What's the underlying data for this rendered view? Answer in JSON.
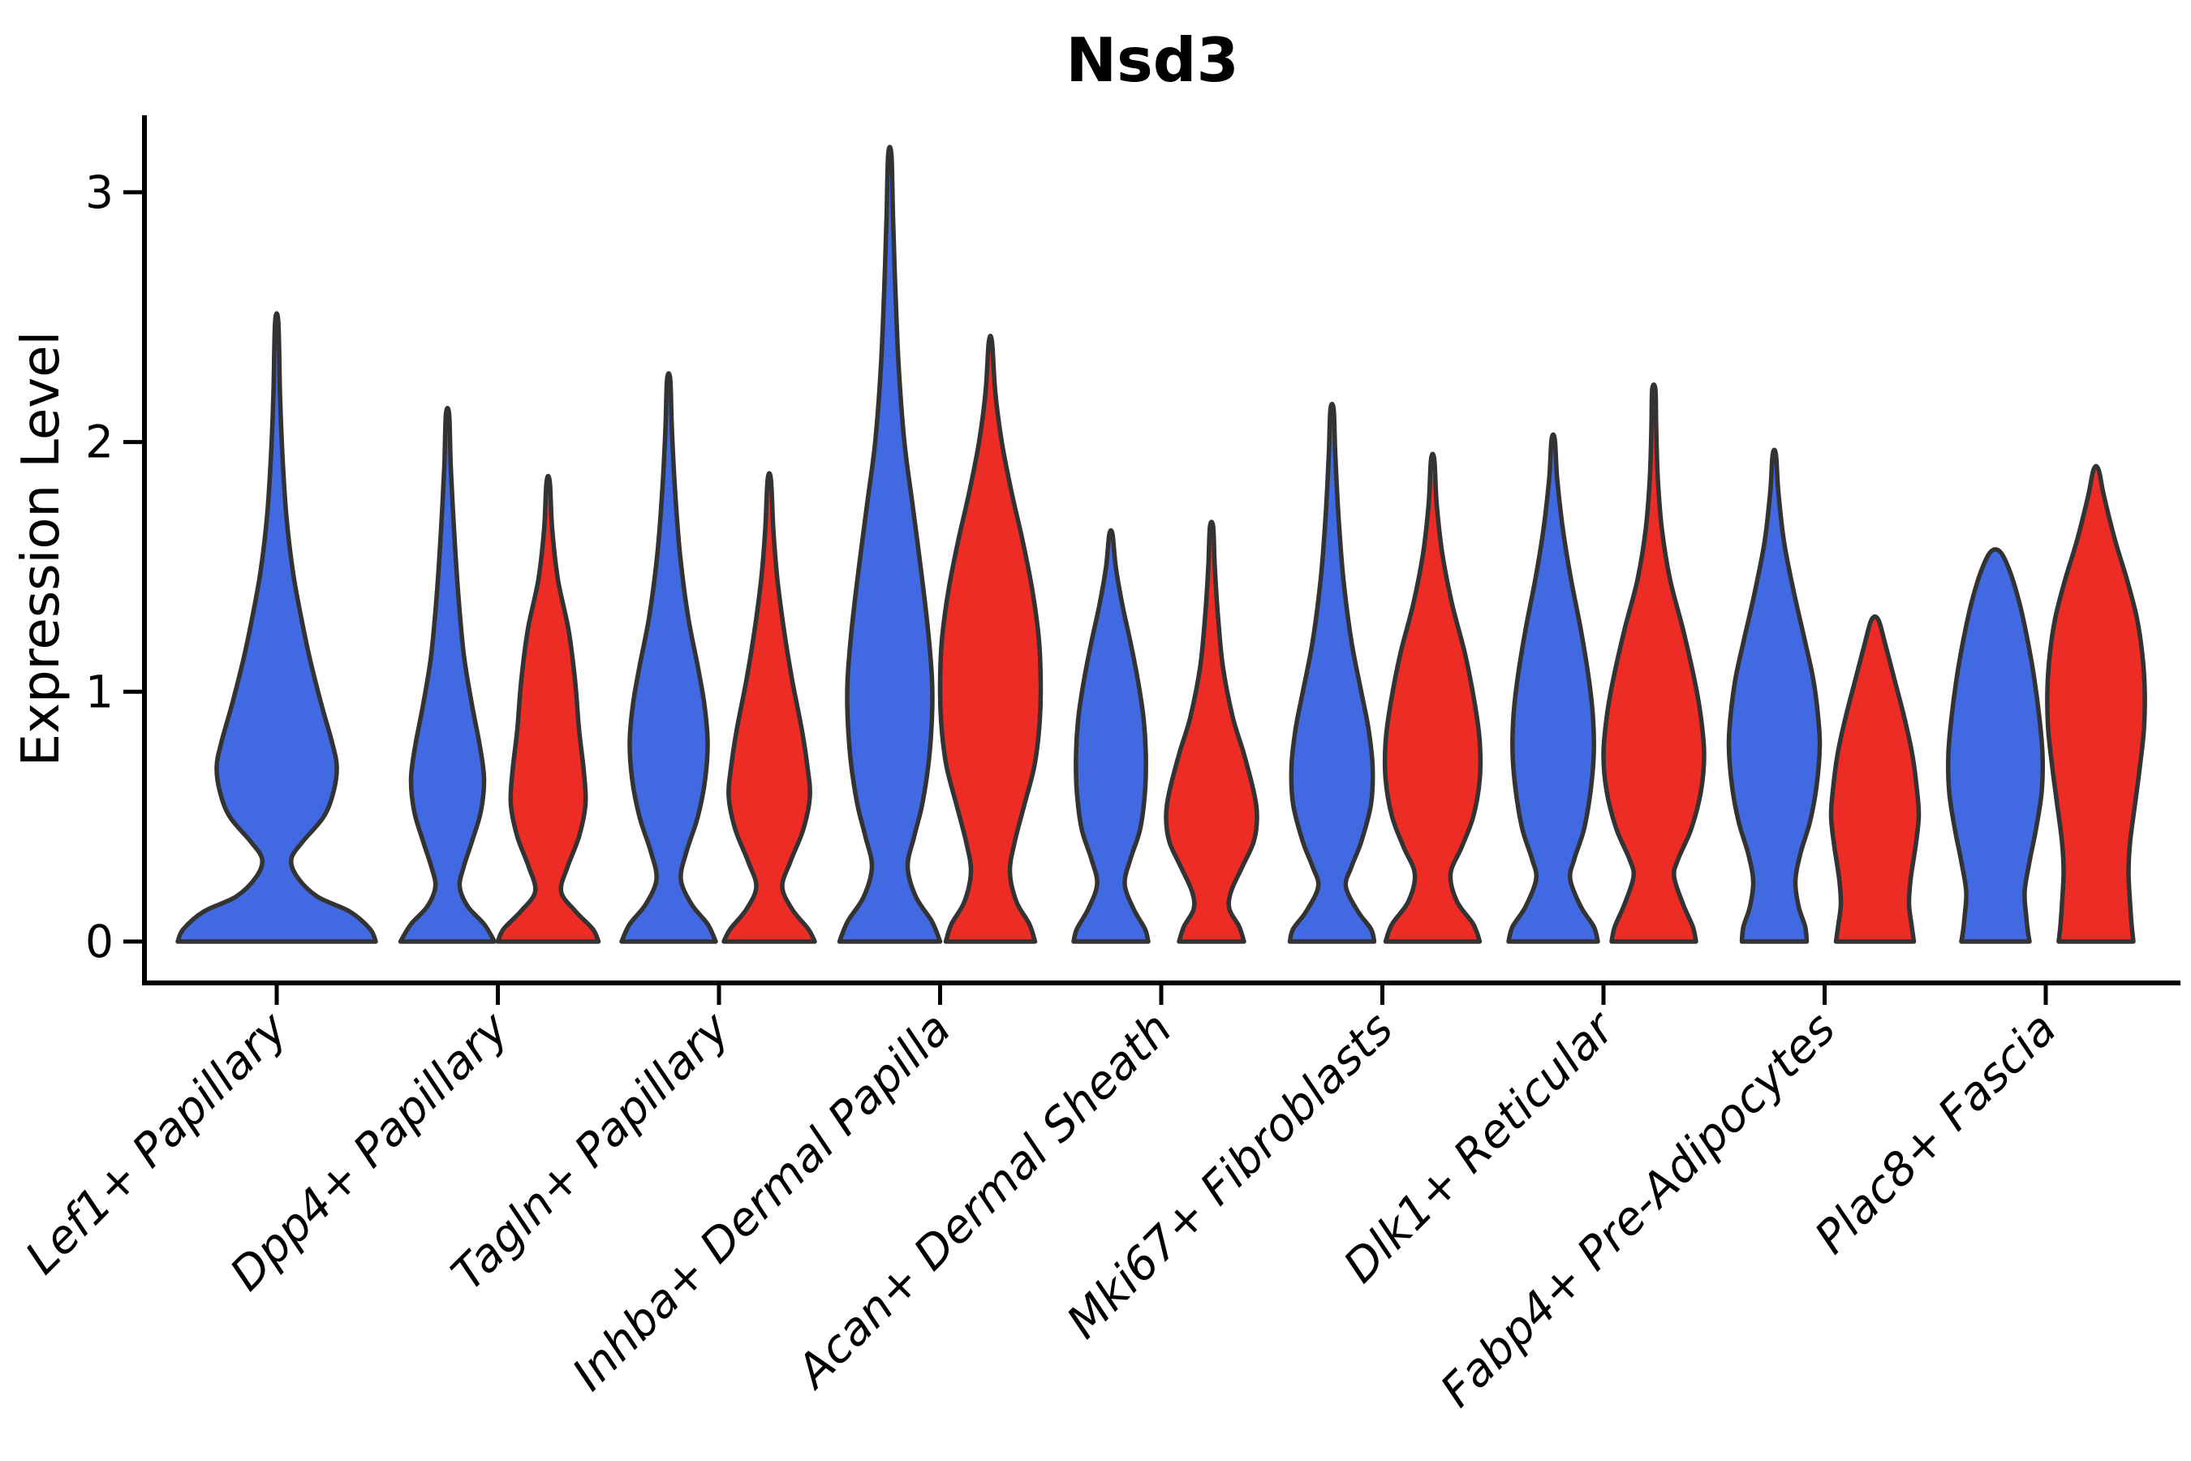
{
  "title": "Nsd3",
  "ylabel": "Expression Level",
  "colors": {
    "split_blue": "#4169E1",
    "split_red": "#EE2C26",
    "violin_outline": "#333333",
    "axis": "#000000",
    "background": "#ffffff"
  },
  "chart_data": {
    "type": "violin",
    "title": "Nsd3",
    "xlabel": "",
    "ylabel": "Expression Level",
    "ylim": [
      0,
      3.3
    ],
    "yticks": [
      0,
      1,
      2,
      3
    ],
    "grid": false,
    "legend": "none",
    "categories": [
      "Lef1+ Papillary",
      "Dpp4+ Papillary",
      "Tagln+ Papillary",
      "Inhba+ Dermal Papilla",
      "Acan+ Dermal Sheath",
      "Mki67+ Fibroblasts",
      "Dlk1+ Reticular",
      "Fabp4+ Pre-Adipocytes",
      "Plac8+ Fascia"
    ],
    "splits": [
      {
        "key": "blue",
        "color": "#4169E1"
      },
      {
        "key": "red",
        "color": "#EE2C26"
      }
    ],
    "violins": [
      {
        "category_index": 0,
        "category": "Lef1+ Papillary",
        "split": "blue",
        "side": "center",
        "max_expression": 2.48,
        "profile": [
          [
            2.48,
            2
          ],
          [
            2.2,
            4
          ],
          [
            1.95,
            7
          ],
          [
            1.7,
            12
          ],
          [
            1.48,
            20
          ],
          [
            1.3,
            30
          ],
          [
            1.13,
            41
          ],
          [
            0.95,
            55
          ],
          [
            0.8,
            68
          ],
          [
            0.7,
            74
          ],
          [
            0.6,
            70
          ],
          [
            0.5,
            58
          ],
          [
            0.4,
            32
          ],
          [
            0.33,
            18
          ],
          [
            0.26,
            25
          ],
          [
            0.18,
            50
          ],
          [
            0.12,
            90
          ],
          [
            0.05,
            115
          ],
          [
            0,
            122
          ]
        ]
      },
      {
        "category_index": 1,
        "category": "Dpp4+ Papillary",
        "split": "blue",
        "side": "left",
        "max_expression": 2.11,
        "profile": [
          [
            2.11,
            2
          ],
          [
            1.9,
            4
          ],
          [
            1.65,
            8
          ],
          [
            1.4,
            13
          ],
          [
            1.15,
            20
          ],
          [
            0.95,
            30
          ],
          [
            0.78,
            40
          ],
          [
            0.65,
            45
          ],
          [
            0.52,
            41
          ],
          [
            0.4,
            30
          ],
          [
            0.3,
            20
          ],
          [
            0.22,
            15
          ],
          [
            0.14,
            25
          ],
          [
            0.07,
            45
          ],
          [
            0,
            58
          ]
        ]
      },
      {
        "category_index": 1,
        "category": "Dpp4+ Papillary",
        "split": "red",
        "side": "right",
        "max_expression": 1.84,
        "profile": [
          [
            1.84,
            2
          ],
          [
            1.65,
            5
          ],
          [
            1.45,
            12
          ],
          [
            1.25,
            25
          ],
          [
            1.05,
            33
          ],
          [
            0.85,
            38
          ],
          [
            0.68,
            44
          ],
          [
            0.55,
            46
          ],
          [
            0.42,
            38
          ],
          [
            0.3,
            24
          ],
          [
            0.2,
            16
          ],
          [
            0.12,
            34
          ],
          [
            0.05,
            55
          ],
          [
            0,
            62
          ]
        ]
      },
      {
        "category_index": 2,
        "category": "Tagln+ Papillary",
        "split": "blue",
        "side": "left",
        "max_expression": 2.25,
        "profile": [
          [
            2.25,
            2
          ],
          [
            2.05,
            4
          ],
          [
            1.8,
            8
          ],
          [
            1.55,
            14
          ],
          [
            1.3,
            24
          ],
          [
            1.1,
            36
          ],
          [
            0.95,
            44
          ],
          [
            0.8,
            48
          ],
          [
            0.65,
            45
          ],
          [
            0.5,
            36
          ],
          [
            0.36,
            22
          ],
          [
            0.25,
            15
          ],
          [
            0.15,
            28
          ],
          [
            0.07,
            48
          ],
          [
            0,
            58
          ]
        ]
      },
      {
        "category_index": 2,
        "category": "Tagln+ Papillary",
        "split": "red",
        "side": "right",
        "max_expression": 1.85,
        "profile": [
          [
            1.85,
            2
          ],
          [
            1.65,
            5
          ],
          [
            1.45,
            10
          ],
          [
            1.25,
            18
          ],
          [
            1.05,
            28
          ],
          [
            0.85,
            40
          ],
          [
            0.7,
            47
          ],
          [
            0.58,
            50
          ],
          [
            0.45,
            42
          ],
          [
            0.32,
            26
          ],
          [
            0.22,
            16
          ],
          [
            0.13,
            28
          ],
          [
            0.05,
            48
          ],
          [
            0,
            56
          ]
        ]
      },
      {
        "category_index": 3,
        "category": "Inhba+ Dermal Papilla",
        "split": "blue",
        "side": "left",
        "max_expression": 3.15,
        "profile": [
          [
            3.15,
            2
          ],
          [
            2.9,
            4
          ],
          [
            2.6,
            7
          ],
          [
            2.3,
            11
          ],
          [
            2.0,
            18
          ],
          [
            1.75,
            28
          ],
          [
            1.5,
            38
          ],
          [
            1.25,
            47
          ],
          [
            1.05,
            52
          ],
          [
            0.9,
            52
          ],
          [
            0.72,
            48
          ],
          [
            0.55,
            40
          ],
          [
            0.42,
            30
          ],
          [
            0.3,
            22
          ],
          [
            0.18,
            32
          ],
          [
            0.08,
            52
          ],
          [
            0,
            62
          ]
        ]
      },
      {
        "category_index": 3,
        "category": "Inhba+ Dermal Papilla",
        "split": "red",
        "side": "right",
        "max_expression": 2.4,
        "profile": [
          [
            2.4,
            2
          ],
          [
            2.2,
            6
          ],
          [
            2.0,
            14
          ],
          [
            1.8,
            26
          ],
          [
            1.6,
            40
          ],
          [
            1.4,
            52
          ],
          [
            1.2,
            60
          ],
          [
            1.0,
            62
          ],
          [
            0.85,
            60
          ],
          [
            0.7,
            54
          ],
          [
            0.55,
            42
          ],
          [
            0.4,
            30
          ],
          [
            0.28,
            24
          ],
          [
            0.16,
            32
          ],
          [
            0.07,
            48
          ],
          [
            0,
            55
          ]
        ]
      },
      {
        "category_index": 4,
        "category": "Acan+ Dermal Sheath",
        "split": "blue",
        "side": "left",
        "max_expression": 1.63,
        "profile": [
          [
            1.63,
            2
          ],
          [
            1.5,
            6
          ],
          [
            1.35,
            14
          ],
          [
            1.2,
            24
          ],
          [
            1.05,
            33
          ],
          [
            0.9,
            40
          ],
          [
            0.75,
            43
          ],
          [
            0.6,
            42
          ],
          [
            0.45,
            36
          ],
          [
            0.33,
            24
          ],
          [
            0.23,
            17
          ],
          [
            0.13,
            28
          ],
          [
            0.05,
            42
          ],
          [
            0,
            46
          ]
        ]
      },
      {
        "category_index": 4,
        "category": "Acan+ Dermal Sheath",
        "split": "red",
        "side": "right",
        "max_expression": 1.66,
        "profile": [
          [
            1.66,
            2
          ],
          [
            1.5,
            4
          ],
          [
            1.3,
            8
          ],
          [
            1.1,
            14
          ],
          [
            0.9,
            26
          ],
          [
            0.75,
            40
          ],
          [
            0.6,
            52
          ],
          [
            0.5,
            56
          ],
          [
            0.4,
            52
          ],
          [
            0.3,
            38
          ],
          [
            0.2,
            24
          ],
          [
            0.13,
            22
          ],
          [
            0.06,
            34
          ],
          [
            0,
            40
          ]
        ]
      },
      {
        "category_index": 5,
        "category": "Mki67+ Fibroblasts",
        "split": "blue",
        "side": "left",
        "max_expression": 2.13,
        "profile": [
          [
            2.13,
            2
          ],
          [
            1.95,
            4
          ],
          [
            1.7,
            8
          ],
          [
            1.45,
            14
          ],
          [
            1.2,
            24
          ],
          [
            1.0,
            36
          ],
          [
            0.85,
            45
          ],
          [
            0.7,
            50
          ],
          [
            0.55,
            48
          ],
          [
            0.4,
            36
          ],
          [
            0.3,
            24
          ],
          [
            0.22,
            17
          ],
          [
            0.12,
            32
          ],
          [
            0.05,
            48
          ],
          [
            0,
            52
          ]
        ]
      },
      {
        "category_index": 5,
        "category": "Mki67+ Fibroblasts",
        "split": "red",
        "side": "right",
        "max_expression": 1.93,
        "profile": [
          [
            1.93,
            2
          ],
          [
            1.75,
            5
          ],
          [
            1.55,
            12
          ],
          [
            1.35,
            24
          ],
          [
            1.15,
            40
          ],
          [
            0.95,
            52
          ],
          [
            0.8,
            58
          ],
          [
            0.65,
            58
          ],
          [
            0.5,
            50
          ],
          [
            0.38,
            36
          ],
          [
            0.27,
            22
          ],
          [
            0.16,
            30
          ],
          [
            0.07,
            50
          ],
          [
            0,
            58
          ]
        ]
      },
      {
        "category_index": 6,
        "category": "Dlk1+ Reticular",
        "split": "blue",
        "side": "left",
        "max_expression": 2.01,
        "profile": [
          [
            2.01,
            2
          ],
          [
            1.85,
            5
          ],
          [
            1.65,
            12
          ],
          [
            1.45,
            22
          ],
          [
            1.25,
            34
          ],
          [
            1.05,
            44
          ],
          [
            0.9,
            49
          ],
          [
            0.75,
            50
          ],
          [
            0.6,
            46
          ],
          [
            0.45,
            38
          ],
          [
            0.33,
            26
          ],
          [
            0.25,
            21
          ],
          [
            0.14,
            34
          ],
          [
            0.06,
            50
          ],
          [
            0,
            55
          ]
        ]
      },
      {
        "category_index": 6,
        "category": "Dlk1+ Reticular",
        "split": "red",
        "side": "right",
        "max_expression": 2.21,
        "profile": [
          [
            2.21,
            2
          ],
          [
            2.05,
            3
          ],
          [
            1.85,
            5
          ],
          [
            1.65,
            10
          ],
          [
            1.45,
            20
          ],
          [
            1.25,
            36
          ],
          [
            1.05,
            50
          ],
          [
            0.9,
            58
          ],
          [
            0.75,
            62
          ],
          [
            0.6,
            58
          ],
          [
            0.45,
            46
          ],
          [
            0.33,
            30
          ],
          [
            0.26,
            25
          ],
          [
            0.15,
            36
          ],
          [
            0.06,
            48
          ],
          [
            0,
            52
          ]
        ]
      },
      {
        "category_index": 7,
        "category": "Fabp4+ Pre-Adipocytes",
        "split": "blue",
        "side": "left",
        "max_expression": 1.95,
        "profile": [
          [
            1.95,
            2
          ],
          [
            1.8,
            5
          ],
          [
            1.6,
            12
          ],
          [
            1.4,
            24
          ],
          [
            1.2,
            38
          ],
          [
            1.05,
            48
          ],
          [
            0.9,
            54
          ],
          [
            0.78,
            56
          ],
          [
            0.62,
            52
          ],
          [
            0.48,
            44
          ],
          [
            0.35,
            32
          ],
          [
            0.24,
            26
          ],
          [
            0.14,
            30
          ],
          [
            0.06,
            38
          ],
          [
            0,
            40
          ]
        ]
      },
      {
        "category_index": 7,
        "category": "Fabp4+ Pre-Adipocytes",
        "split": "red",
        "side": "right",
        "max_expression": 1.29,
        "profile": [
          [
            1.29,
            4
          ],
          [
            1.2,
            12
          ],
          [
            1.05,
            24
          ],
          [
            0.9,
            36
          ],
          [
            0.75,
            46
          ],
          [
            0.6,
            52
          ],
          [
            0.5,
            54
          ],
          [
            0.38,
            50
          ],
          [
            0.25,
            44
          ],
          [
            0.15,
            42
          ],
          [
            0.07,
            45
          ],
          [
            0,
            48
          ]
        ]
      },
      {
        "category_index": 8,
        "category": "Plac8+ Fascia",
        "split": "blue",
        "side": "left",
        "max_expression": 1.56,
        "profile": [
          [
            1.56,
            6
          ],
          [
            1.48,
            18
          ],
          [
            1.35,
            30
          ],
          [
            1.2,
            40
          ],
          [
            1.05,
            48
          ],
          [
            0.9,
            54
          ],
          [
            0.75,
            58
          ],
          [
            0.6,
            57
          ],
          [
            0.45,
            50
          ],
          [
            0.32,
            42
          ],
          [
            0.2,
            36
          ],
          [
            0.1,
            38
          ],
          [
            0.04,
            40
          ],
          [
            0,
            42
          ]
        ]
      },
      {
        "category_index": 8,
        "category": "Plac8+ Fascia",
        "split": "red",
        "side": "right",
        "max_expression": 1.89,
        "profile": [
          [
            1.89,
            3
          ],
          [
            1.78,
            10
          ],
          [
            1.6,
            24
          ],
          [
            1.45,
            38
          ],
          [
            1.3,
            50
          ],
          [
            1.15,
            57
          ],
          [
            1.0,
            60
          ],
          [
            0.85,
            59
          ],
          [
            0.7,
            54
          ],
          [
            0.55,
            48
          ],
          [
            0.4,
            42
          ],
          [
            0.28,
            40
          ],
          [
            0.15,
            42
          ],
          [
            0.06,
            44
          ],
          [
            0,
            46
          ]
        ]
      }
    ]
  }
}
